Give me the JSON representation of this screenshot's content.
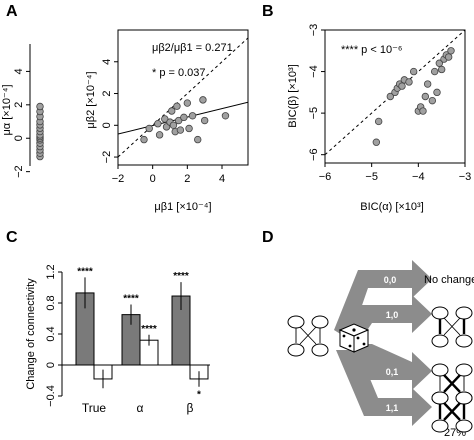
{
  "panels": {
    "A": {
      "letter": "A"
    },
    "B": {
      "letter": "B"
    },
    "C": {
      "letter": "C"
    },
    "D": {
      "letter": "D"
    }
  },
  "chart_data": [
    {
      "id": "A-left",
      "type": "strip",
      "ylabel": "μα [×10⁻⁴]",
      "ylim": [
        -2.5,
        6
      ],
      "yticks": [
        -2,
        0,
        2,
        4
      ],
      "ytick_labels": [
        "−2",
        "0",
        "2",
        "4"
      ],
      "values": [
        -1.1,
        -0.9,
        -0.7,
        -0.5,
        -0.3,
        -0.1,
        0.0,
        0.1,
        0.2,
        0.4,
        0.6,
        0.8,
        1.0,
        1.3,
        1.6,
        1.9
      ],
      "color": "#a0a0a0"
    },
    {
      "id": "A-right",
      "type": "scatter",
      "xlabel": "μβ1 [×10⁻⁴]",
      "ylabel": "μβ2 [×10⁻⁴]",
      "xlim": [
        -2,
        5.5
      ],
      "ylim": [
        -2.5,
        6
      ],
      "xticks": [
        -2,
        0,
        2,
        4
      ],
      "xtick_labels": [
        "−2",
        "0",
        "2",
        "4"
      ],
      "yticks": [
        -2,
        0,
        2,
        4
      ],
      "ytick_labels": [
        "−2",
        "0",
        "2",
        "4"
      ],
      "annotation_ratio": "μβ2/μβ1 = 0.271",
      "annotation_p": "* p = 0.037",
      "points": [
        {
          "x": -0.5,
          "y": -0.9
        },
        {
          "x": -0.2,
          "y": -0.2
        },
        {
          "x": 0.3,
          "y": 0.1
        },
        {
          "x": 0.4,
          "y": -0.6
        },
        {
          "x": 0.7,
          "y": 0.4
        },
        {
          "x": 0.8,
          "y": -0.1
        },
        {
          "x": 1.0,
          "y": 0.2
        },
        {
          "x": 1.1,
          "y": 0.9
        },
        {
          "x": 1.2,
          "y": 0.0
        },
        {
          "x": 1.3,
          "y": -0.4
        },
        {
          "x": 1.4,
          "y": 1.2
        },
        {
          "x": 1.5,
          "y": 0.3
        },
        {
          "x": 1.6,
          "y": -0.3
        },
        {
          "x": 1.8,
          "y": 0.5
        },
        {
          "x": 2.0,
          "y": 1.4
        },
        {
          "x": 2.1,
          "y": -0.2
        },
        {
          "x": 2.3,
          "y": 0.6
        },
        {
          "x": 2.6,
          "y": -0.9
        },
        {
          "x": 2.9,
          "y": 1.6
        },
        {
          "x": 3.0,
          "y": 0.3
        },
        {
          "x": 4.2,
          "y": 0.6
        }
      ],
      "identity_line": [
        [
          -2,
          -2
        ],
        [
          5.5,
          5.5
        ]
      ],
      "fit_line": [
        [
          -2,
          -0.55
        ],
        [
          5.5,
          1.45
        ]
      ],
      "color": "#a0a0a0"
    },
    {
      "id": "B",
      "type": "scatter",
      "xlabel": "BIC(α) [×10³]",
      "ylabel": "BIC(β) [×10³]",
      "xlim": [
        -6,
        -3
      ],
      "ylim": [
        -6.2,
        -3
      ],
      "xticks": [
        -6,
        -5,
        -4,
        -3
      ],
      "xtick_labels": [
        "−6",
        "−5",
        "−4",
        "−3"
      ],
      "yticks": [
        -6,
        -5,
        -4,
        -3
      ],
      "ytick_labels": [
        "−6",
        "−5",
        "−4",
        "−3"
      ],
      "annotation": "**** p < 10⁻⁶",
      "points": [
        {
          "x": -4.9,
          "y": -5.7
        },
        {
          "x": -4.85,
          "y": -5.2
        },
        {
          "x": -4.6,
          "y": -4.6
        },
        {
          "x": -4.5,
          "y": -4.5
        },
        {
          "x": -4.45,
          "y": -4.4
        },
        {
          "x": -4.4,
          "y": -4.3
        },
        {
          "x": -4.35,
          "y": -4.35
        },
        {
          "x": -4.3,
          "y": -4.2
        },
        {
          "x": -4.2,
          "y": -4.25
        },
        {
          "x": -4.1,
          "y": -4.0
        },
        {
          "x": -4.0,
          "y": -4.95
        },
        {
          "x": -3.95,
          "y": -4.85
        },
        {
          "x": -3.9,
          "y": -4.95
        },
        {
          "x": -3.85,
          "y": -4.6
        },
        {
          "x": -3.8,
          "y": -4.3
        },
        {
          "x": -3.7,
          "y": -4.7
        },
        {
          "x": -3.65,
          "y": -4.0
        },
        {
          "x": -3.6,
          "y": -4.5
        },
        {
          "x": -3.55,
          "y": -3.8
        },
        {
          "x": -3.5,
          "y": -3.95
        },
        {
          "x": -3.45,
          "y": -3.7
        },
        {
          "x": -3.4,
          "y": -3.6
        },
        {
          "x": -3.35,
          "y": -3.65
        },
        {
          "x": -3.3,
          "y": -3.5
        }
      ],
      "identity_line": [
        [
          -6,
          -6
        ],
        [
          -3,
          -3
        ]
      ],
      "color": "#a0a0a0"
    },
    {
      "id": "C",
      "type": "bar",
      "ylabel": "Change of connectivity",
      "ylim": [
        -0.4,
        1.2
      ],
      "yticks": [
        -0.4,
        0,
        0.4,
        0.8,
        1.2
      ],
      "ytick_labels": [
        "−0.4",
        "0",
        "0.4",
        "0.8",
        "1.2"
      ],
      "categories": [
        "True",
        "α",
        "β"
      ],
      "series": [
        {
          "values": [
            0.93,
            0.65,
            0.89
          ],
          "errors": [
            0.2,
            0.13,
            0.18
          ],
          "color": "#7a7a7a"
        },
        {
          "values": [
            -0.18,
            0.32,
            -0.18
          ],
          "errors": [
            0.12,
            0.07,
            0.1
          ],
          "color": "#ffffff"
        }
      ],
      "significance": [
        {
          "category": 0,
          "series": 0,
          "label": "****"
        },
        {
          "category": 1,
          "series": 0,
          "label": "****"
        },
        {
          "category": 1,
          "series": 1,
          "label": "****"
        },
        {
          "category": 2,
          "series": 0,
          "label": "****"
        },
        {
          "category": 2,
          "series": 1,
          "label": "*"
        }
      ]
    }
  ],
  "diagram": {
    "branches": [
      {
        "code": "0,0",
        "outcome": "No change"
      },
      {
        "code": "1,0",
        "outcome": ""
      },
      {
        "code": "0,1",
        "outcome": ""
      },
      {
        "code": "1,1",
        "outcome": "27%"
      }
    ]
  }
}
